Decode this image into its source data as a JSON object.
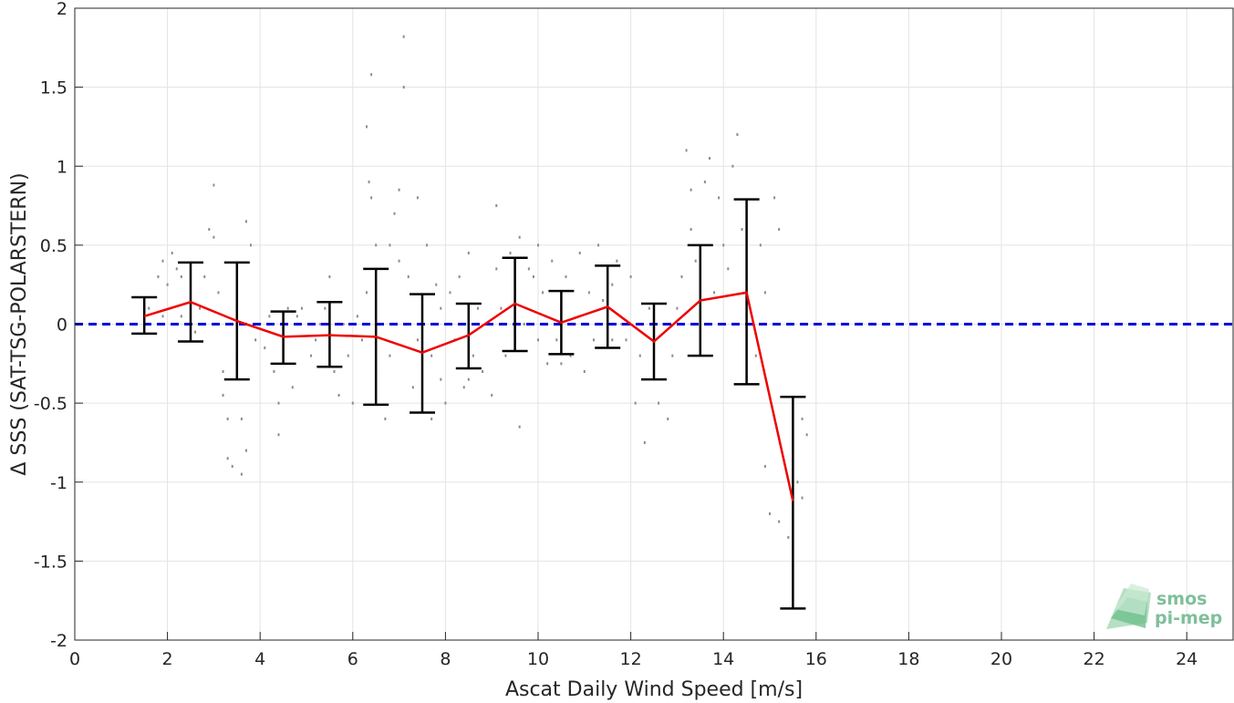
{
  "chart_data": {
    "type": "scatter",
    "xlabel": "Ascat Daily Wind Speed [m/s]",
    "ylabel": "Δ SSS (SAT-TSG-POLARSTERN)",
    "xlim": [
      0,
      25
    ],
    "ylim": [
      -2,
      2
    ],
    "xticks": [
      0,
      2,
      4,
      6,
      8,
      10,
      12,
      14,
      16,
      18,
      20,
      22,
      24
    ],
    "yticks": [
      -2,
      -1.5,
      -1,
      -0.5,
      0,
      0.5,
      1,
      1.5,
      2
    ],
    "xtick_labels": [
      "0",
      "2",
      "4",
      "6",
      "8",
      "10",
      "12",
      "14",
      "16",
      "18",
      "20",
      "22",
      "24"
    ],
    "ytick_labels": [
      "-2",
      "-1.5",
      "-1",
      "-0.5",
      "0",
      "0.5",
      "1",
      "1.5",
      "2"
    ],
    "grid": true,
    "reference_line": {
      "y": 0,
      "color": "#0000dd",
      "style": "dashed"
    },
    "mean_series": {
      "color": "#ee0000",
      "x": [
        1.5,
        2.5,
        3.5,
        4.5,
        5.5,
        6.5,
        7.5,
        8.5,
        9.5,
        10.5,
        11.5,
        12.5,
        13.5,
        14.5,
        15.5
      ],
      "y": [
        0.05,
        0.14,
        0.02,
        -0.08,
        -0.07,
        -0.08,
        -0.18,
        -0.07,
        0.13,
        0.01,
        0.11,
        -0.11,
        0.15,
        0.2,
        -1.12
      ]
    },
    "error_bars": {
      "color": "#000000",
      "lower": [
        -0.06,
        -0.11,
        -0.35,
        -0.25,
        -0.27,
        -0.51,
        -0.56,
        -0.28,
        -0.17,
        -0.19,
        -0.15,
        -0.35,
        -0.2,
        -0.38,
        -1.8
      ],
      "upper": [
        0.17,
        0.39,
        0.39,
        0.08,
        0.14,
        0.35,
        0.19,
        0.13,
        0.42,
        0.21,
        0.37,
        0.13,
        0.5,
        0.79,
        -0.46
      ]
    },
    "scatter": {
      "color": "#8c8c8c",
      "points": [
        [
          1.6,
          0.1
        ],
        [
          1.8,
          0.3
        ],
        [
          1.9,
          0.05
        ],
        [
          1.9,
          0.4
        ],
        [
          2.0,
          0.25
        ],
        [
          2.1,
          0.45
        ],
        [
          2.2,
          0.35
        ],
        [
          2.3,
          0.05
        ],
        [
          2.3,
          0.3
        ],
        [
          2.5,
          0.2
        ],
        [
          2.6,
          -0.05
        ],
        [
          2.7,
          0.1
        ],
        [
          2.8,
          0.3
        ],
        [
          2.9,
          0.6
        ],
        [
          3.0,
          0.88
        ],
        [
          3.0,
          0.55
        ],
        [
          3.1,
          0.2
        ],
        [
          3.2,
          -0.3
        ],
        [
          3.2,
          -0.45
        ],
        [
          3.3,
          -0.6
        ],
        [
          3.3,
          -0.85
        ],
        [
          3.4,
          -0.9
        ],
        [
          3.5,
          0.1
        ],
        [
          3.5,
          -0.2
        ],
        [
          3.6,
          -0.6
        ],
        [
          3.6,
          -0.95
        ],
        [
          3.7,
          -0.8
        ],
        [
          3.7,
          0.65
        ],
        [
          3.8,
          0.5
        ],
        [
          3.9,
          -0.1
        ],
        [
          4.0,
          0.0
        ],
        [
          4.1,
          -0.15
        ],
        [
          4.2,
          0.05
        ],
        [
          4.3,
          -0.3
        ],
        [
          4.4,
          -0.5
        ],
        [
          4.4,
          -0.7
        ],
        [
          4.5,
          -0.2
        ],
        [
          4.6,
          0.1
        ],
        [
          4.7,
          -0.4
        ],
        [
          4.8,
          0.05
        ],
        [
          4.9,
          0.1
        ],
        [
          5.1,
          -0.2
        ],
        [
          5.2,
          -0.1
        ],
        [
          5.3,
          0.0
        ],
        [
          5.4,
          0.1
        ],
        [
          5.5,
          0.3
        ],
        [
          5.6,
          -0.3
        ],
        [
          5.7,
          -0.45
        ],
        [
          5.8,
          0.0
        ],
        [
          5.9,
          -0.2
        ],
        [
          6.0,
          -0.5
        ],
        [
          6.1,
          0.05
        ],
        [
          6.2,
          -0.1
        ],
        [
          6.3,
          0.2
        ],
        [
          6.3,
          1.25
        ],
        [
          6.35,
          0.9
        ],
        [
          6.4,
          1.58
        ],
        [
          6.4,
          0.8
        ],
        [
          6.5,
          0.5
        ],
        [
          6.6,
          0.0
        ],
        [
          6.7,
          -0.6
        ],
        [
          6.8,
          0.5
        ],
        [
          6.8,
          -0.2
        ],
        [
          6.9,
          0.7
        ],
        [
          7.0,
          0.85
        ],
        [
          7.0,
          0.4
        ],
        [
          7.1,
          1.82
        ],
        [
          7.1,
          1.5
        ],
        [
          7.2,
          0.3
        ],
        [
          7.3,
          -0.4
        ],
        [
          7.4,
          0.8
        ],
        [
          7.4,
          -0.1
        ],
        [
          7.5,
          -0.3
        ],
        [
          7.6,
          0.5
        ],
        [
          7.7,
          -0.2
        ],
        [
          7.7,
          -0.6
        ],
        [
          7.8,
          0.25
        ],
        [
          7.9,
          -0.35
        ],
        [
          7.9,
          0.1
        ],
        [
          8.0,
          -0.5
        ],
        [
          8.1,
          0.2
        ],
        [
          8.2,
          -0.1
        ],
        [
          8.3,
          0.3
        ],
        [
          8.4,
          -0.4
        ],
        [
          8.5,
          0.45
        ],
        [
          8.6,
          -0.2
        ],
        [
          8.7,
          0.1
        ],
        [
          8.8,
          -0.3
        ],
        [
          8.9,
          0.0
        ],
        [
          9.0,
          -0.45
        ],
        [
          9.1,
          0.35
        ],
        [
          9.1,
          0.75
        ],
        [
          9.2,
          0.1
        ],
        [
          9.3,
          -0.2
        ],
        [
          9.4,
          0.45
        ],
        [
          9.5,
          0.2
        ],
        [
          9.6,
          0.55
        ],
        [
          9.6,
          -0.65
        ],
        [
          9.7,
          0.0
        ],
        [
          9.8,
          0.35
        ],
        [
          9.9,
          0.3
        ],
        [
          10.0,
          0.5
        ],
        [
          10.0,
          -0.1
        ],
        [
          10.1,
          0.2
        ],
        [
          10.2,
          -0.25
        ],
        [
          10.3,
          0.4
        ],
        [
          10.4,
          -0.1
        ],
        [
          10.5,
          0.1
        ],
        [
          10.6,
          0.3
        ],
        [
          10.7,
          -0.2
        ],
        [
          10.8,
          0.0
        ],
        [
          10.9,
          0.45
        ],
        [
          11.0,
          -0.3
        ],
        [
          11.1,
          0.2
        ],
        [
          11.2,
          -0.1
        ],
        [
          11.3,
          0.5
        ],
        [
          11.4,
          0.15
        ],
        [
          11.5,
          -0.05
        ],
        [
          11.6,
          0.25
        ],
        [
          11.7,
          0.4
        ],
        [
          11.8,
          0.0
        ],
        [
          11.9,
          -0.1
        ],
        [
          12.0,
          0.3
        ],
        [
          12.1,
          -0.5
        ],
        [
          12.2,
          -0.2
        ],
        [
          12.3,
          -0.75
        ],
        [
          12.4,
          0.1
        ],
        [
          12.5,
          -0.3
        ],
        [
          12.6,
          -0.5
        ],
        [
          12.7,
          0.0
        ],
        [
          12.8,
          -0.6
        ],
        [
          12.9,
          -0.2
        ],
        [
          13.0,
          0.1
        ],
        [
          13.1,
          0.3
        ],
        [
          13.2,
          1.1
        ],
        [
          13.3,
          0.85
        ],
        [
          13.3,
          0.6
        ],
        [
          13.4,
          0.4
        ],
        [
          13.5,
          0.0
        ],
        [
          13.6,
          0.9
        ],
        [
          13.7,
          1.05
        ],
        [
          13.8,
          0.2
        ],
        [
          13.9,
          0.8
        ],
        [
          14.0,
          0.5
        ],
        [
          14.1,
          0.35
        ],
        [
          14.2,
          1.0
        ],
        [
          14.3,
          1.2
        ],
        [
          14.4,
          0.6
        ],
        [
          14.5,
          0.3
        ],
        [
          14.6,
          0.0
        ],
        [
          14.7,
          -0.2
        ],
        [
          14.8,
          0.5
        ],
        [
          14.9,
          -0.9
        ],
        [
          15.0,
          -1.2
        ],
        [
          15.1,
          0.8
        ],
        [
          15.2,
          0.6
        ],
        [
          15.2,
          -1.25
        ],
        [
          15.4,
          -1.35
        ],
        [
          15.5,
          -1.2
        ],
        [
          15.6,
          -1.0
        ],
        [
          15.7,
          -1.1
        ],
        [
          15.8,
          -0.7
        ],
        [
          15.7,
          -0.6
        ],
        [
          14.9,
          0.2
        ],
        [
          11.6,
          -0.1
        ],
        [
          10.5,
          -0.25
        ],
        [
          9.5,
          -0.1
        ],
        [
          8.5,
          -0.35
        ],
        [
          7.5,
          -0.5
        ],
        [
          6.5,
          -0.3
        ]
      ]
    }
  },
  "logo": {
    "line1": "smos",
    "line2": "pi-mep"
  }
}
